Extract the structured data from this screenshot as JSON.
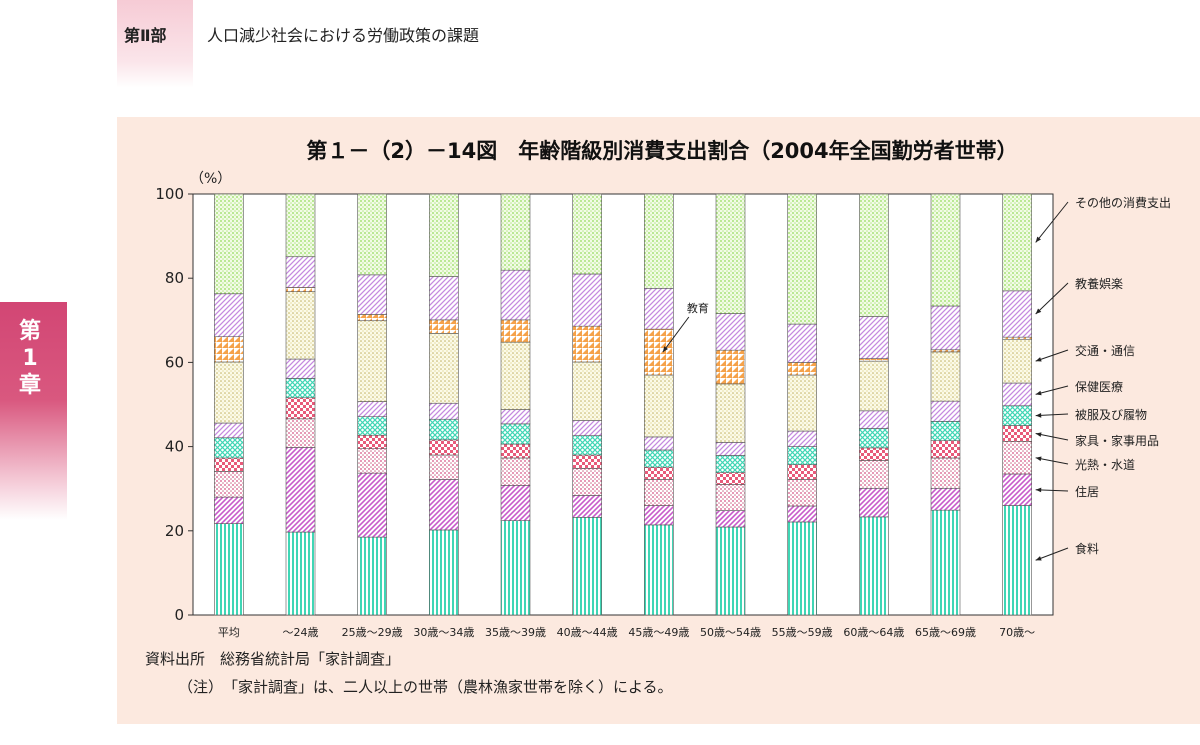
{
  "header": {
    "part_label": "第Ⅱ部",
    "part_title": "人口減少社会における労働政策の課題"
  },
  "side_tab": {
    "chapter": [
      "第",
      "1",
      "章"
    ]
  },
  "footer": {
    "source": "資料出所　総務省統計局「家計調査」",
    "note": "（注）　「家計調査」は、二人以上の世帯（農林漁家世帯を除く）による。"
  },
  "chart_data": {
    "type": "bar",
    "stacked": true,
    "title": "第１－（2）－14図　年齢階級別消費支出割合（2004年全国勤労者世帯）",
    "ylabel": "（%）",
    "ylim": [
      0,
      100
    ],
    "yticks": [
      0,
      20,
      40,
      60,
      80,
      100
    ],
    "categories": [
      "平均",
      "～24歳",
      "25歳～29歳",
      "30歳～34歳",
      "35歳～39歳",
      "40歳～44歳",
      "45歳～49歳",
      "50歳～54歳",
      "55歳～59歳",
      "60歳～64歳",
      "65歳～69歳",
      "70歳～"
    ],
    "series": [
      {
        "name": "食料",
        "color": "#3fd6b5",
        "pattern": "vlines",
        "values": [
          21.7,
          19.7,
          18.5,
          20.2,
          22.4,
          23.2,
          21.4,
          20.9,
          22.1,
          23.3,
          24.9,
          26.0
        ]
      },
      {
        "name": "住居",
        "color": "#c85acb",
        "pattern": "diag",
        "values": [
          6.3,
          20.1,
          15.2,
          12.0,
          8.4,
          5.2,
          4.6,
          3.9,
          3.8,
          6.8,
          5.2,
          7.5
        ]
      },
      {
        "name": "光熱・水道",
        "color": "#e07aa0",
        "pattern": "dots",
        "values": [
          6.1,
          6.8,
          5.8,
          5.8,
          6.5,
          6.4,
          6.2,
          6.2,
          6.3,
          6.6,
          7.2,
          7.7
        ]
      },
      {
        "name": "家具・家事用品",
        "color": "#e85a7a",
        "pattern": "checks",
        "values": [
          3.2,
          5.0,
          3.2,
          3.6,
          3.3,
          3.2,
          2.9,
          2.8,
          3.5,
          3.0,
          4.1,
          3.8
        ]
      },
      {
        "name": "被服及び履物",
        "color": "#3fd6b5",
        "pattern": "xhatch",
        "values": [
          4.8,
          4.6,
          4.4,
          4.9,
          4.8,
          4.6,
          4.1,
          4.1,
          4.3,
          4.6,
          4.6,
          4.7
        ]
      },
      {
        "name": "保健医療",
        "color": "#c58ae0",
        "pattern": "diag",
        "values": [
          3.5,
          4.6,
          3.6,
          3.8,
          3.4,
          3.6,
          3.1,
          3.1,
          3.7,
          4.2,
          4.8,
          5.4
        ]
      },
      {
        "name": "交通・通信",
        "color": "#d8d28a",
        "pattern": "dots",
        "values": [
          14.5,
          16.0,
          19.2,
          16.6,
          16.0,
          13.9,
          14.7,
          13.9,
          13.3,
          11.8,
          11.7,
          10.4
        ]
      },
      {
        "name": "教育",
        "color": "#f5a24a",
        "pattern": "tri",
        "values": [
          6.0,
          1.0,
          1.5,
          3.2,
          5.3,
          8.5,
          10.9,
          8.0,
          3.0,
          0.6,
          0.5,
          0.5
        ]
      },
      {
        "name": "教養娯楽",
        "color": "#c58ae0",
        "pattern": "diag",
        "values": [
          10.2,
          7.3,
          9.4,
          10.3,
          11.8,
          12.4,
          9.7,
          8.7,
          9.1,
          10.0,
          10.4,
          11.0
        ]
      },
      {
        "name": "その他の消費支出",
        "color": "#a8e27a",
        "pattern": "dots",
        "values": [
          23.7,
          14.9,
          19.2,
          19.6,
          18.1,
          19.0,
          22.4,
          28.4,
          30.9,
          29.1,
          26.6,
          23.0
        ]
      }
    ],
    "annotations": [
      {
        "text": "教育",
        "category_index": 6,
        "series_index": 7
      }
    ],
    "legend": {
      "placement": "right",
      "labels": [
        "その他の消費支出",
        "教養娯楽",
        "交通・通信",
        "保健医療",
        "被服及び履物",
        "家具・家事用品",
        "光熱・水道",
        "住居",
        "食料"
      ]
    }
  }
}
